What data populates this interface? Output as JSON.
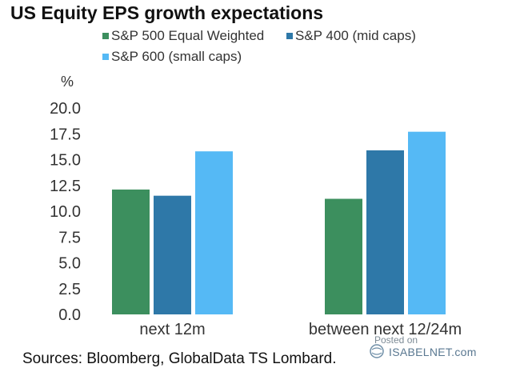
{
  "chart_data": {
    "type": "bar",
    "title": "US Equity EPS growth expectations",
    "ylabel": "%",
    "xlabel": "",
    "ylim": [
      0,
      20
    ],
    "yticks": [
      "0.0",
      "2.5",
      "5.0",
      "7.5",
      "10.0",
      "12.5",
      "15.0",
      "17.5",
      "20.0"
    ],
    "grid": false,
    "legend_position": "top",
    "categories": [
      "next 12m",
      "between next 12/24m"
    ],
    "series": [
      {
        "name": "S&P 500 Equal Weighted",
        "color": "#3c8f5e",
        "values": [
          12.1,
          11.2
        ]
      },
      {
        "name": "S&P 400 (mid caps)",
        "color": "#2e78a8",
        "values": [
          11.5,
          15.9
        ]
      },
      {
        "name": "S&P 600 (small caps)",
        "color": "#55b9f5",
        "values": [
          15.8,
          17.7
        ]
      }
    ]
  },
  "footer": {
    "source": "Sources: Bloomberg, GlobalData TS Lombard.",
    "watermark_posted": "Posted on",
    "watermark_brand": "ISABELNET.com"
  }
}
